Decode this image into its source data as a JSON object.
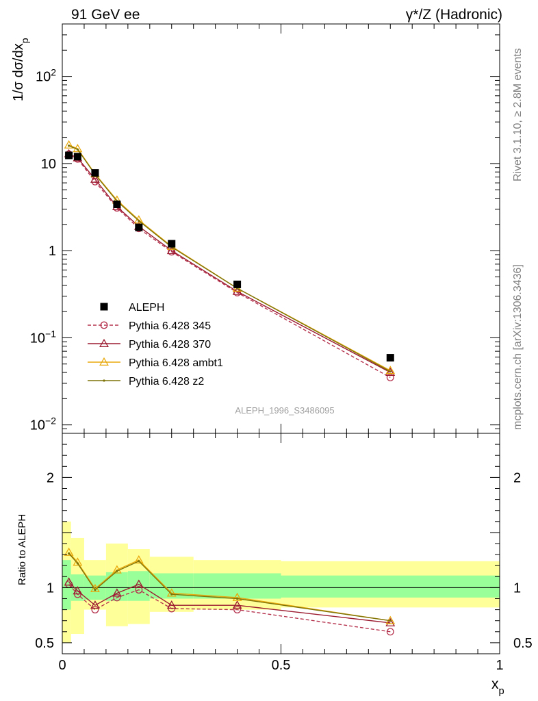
{
  "header": {
    "left": "91 GeV ee",
    "right": "γ*/Z (Hadronic)"
  },
  "side_labels": {
    "rivet": "Rivet 3.1.10, ≥ 2.8M events",
    "mcplots": "mcplots.cern.ch [arXiv:1306.3436]"
  },
  "watermark": "ALEPH_1996_S3486095",
  "chart_data": [
    {
      "type": "scatter",
      "panel": "main",
      "ylabel": "1/σ dσ/dx_p",
      "yscale": "log",
      "ylim": [
        0.008,
        400
      ],
      "xlim": [
        0,
        1
      ],
      "y_tick_labels": [
        "10⁻²",
        "10⁻¹",
        "1",
        "10",
        "10²"
      ],
      "legend_placement": "lower-left",
      "x": [
        0.015,
        0.035,
        0.075,
        0.125,
        0.175,
        0.25,
        0.4,
        0.75
      ],
      "series": [
        {
          "name": "ALEPH",
          "marker": "square",
          "color": "#000000",
          "line": "none",
          "values": [
            12.4,
            12.0,
            7.8,
            3.4,
            1.85,
            1.2,
            0.41,
            0.059
          ]
        },
        {
          "name": "Pythia 6.428 345",
          "marker": "open-circle",
          "color": "#b5334e",
          "line": "dashed",
          "values": [
            12.8,
            11.3,
            6.2,
            3.1,
            1.8,
            0.97,
            0.33,
            0.035
          ]
        },
        {
          "name": "Pythia 6.428 370",
          "marker": "open-triangle",
          "color": "#9b1b30",
          "line": "solid",
          "values": [
            12.9,
            11.6,
            6.6,
            3.2,
            1.9,
            1.0,
            0.34,
            0.04
          ]
        },
        {
          "name": "Pythia 6.428 ambt1",
          "marker": "open-triangle",
          "color": "#e8a80c",
          "line": "solid",
          "values": [
            16.3,
            14.8,
            7.6,
            3.8,
            2.25,
            1.12,
            0.37,
            0.042
          ]
        },
        {
          "name": "Pythia 6.428 z2",
          "marker": "dot",
          "color": "#7d7308",
          "line": "solid",
          "values": [
            16.0,
            14.5,
            7.5,
            3.7,
            2.2,
            1.1,
            0.37,
            0.041
          ]
        }
      ]
    },
    {
      "type": "line",
      "panel": "ratio",
      "ylabel": "Ratio to ALEPH",
      "xlabel": "x_p",
      "ylim": [
        0.4,
        2.4
      ],
      "xlim": [
        0,
        1
      ],
      "y_tick_labels": [
        "0.5",
        "1",
        "2"
      ],
      "x_tick_labels": [
        "0",
        "0.5",
        "1"
      ],
      "x": [
        0.015,
        0.035,
        0.075,
        0.125,
        0.175,
        0.25,
        0.4,
        0.75
      ],
      "bins": [
        [
          0.0,
          0.02
        ],
        [
          0.02,
          0.05
        ],
        [
          0.05,
          0.1
        ],
        [
          0.1,
          0.15
        ],
        [
          0.15,
          0.2
        ],
        [
          0.2,
          0.3
        ],
        [
          0.3,
          0.5
        ],
        [
          0.5,
          1.0
        ]
      ],
      "bands": {
        "inner_color": "#99ff99",
        "outer_color": "#ffff99",
        "inner": [
          [
            0.8,
            1.25
          ],
          [
            0.88,
            1.12
          ],
          [
            0.89,
            1.11
          ],
          [
            0.88,
            1.14
          ],
          [
            0.88,
            1.15
          ],
          [
            0.9,
            1.13
          ],
          [
            0.9,
            1.13
          ],
          [
            0.91,
            1.11
          ]
        ],
        "outer": [
          [
            0.5,
            1.6
          ],
          [
            0.58,
            1.45
          ],
          [
            0.8,
            1.25
          ],
          [
            0.65,
            1.4
          ],
          [
            0.67,
            1.35
          ],
          [
            0.78,
            1.28
          ],
          [
            0.8,
            1.25
          ],
          [
            0.82,
            1.24
          ]
        ]
      },
      "series": [
        {
          "name": "Pythia 6.428 345",
          "marker": "open-circle",
          "color": "#b5334e",
          "line": "dashed",
          "values": [
            1.03,
            0.94,
            0.8,
            0.91,
            0.98,
            0.81,
            0.8,
            0.6
          ]
        },
        {
          "name": "Pythia 6.428 370",
          "marker": "open-triangle",
          "color": "#9b1b30",
          "line": "solid",
          "values": [
            1.05,
            0.97,
            0.84,
            0.95,
            1.03,
            0.84,
            0.84,
            0.68
          ]
        },
        {
          "name": "Pythia 6.428 ambt1",
          "marker": "open-triangle",
          "color": "#e8a80c",
          "line": "solid",
          "values": [
            1.32,
            1.23,
            0.99,
            1.16,
            1.25,
            0.95,
            0.91,
            0.7
          ]
        },
        {
          "name": "Pythia 6.428 z2",
          "marker": "dot",
          "color": "#7d7308",
          "line": "solid",
          "values": [
            1.31,
            1.22,
            0.98,
            1.15,
            1.24,
            0.94,
            0.9,
            0.7
          ]
        }
      ]
    }
  ]
}
